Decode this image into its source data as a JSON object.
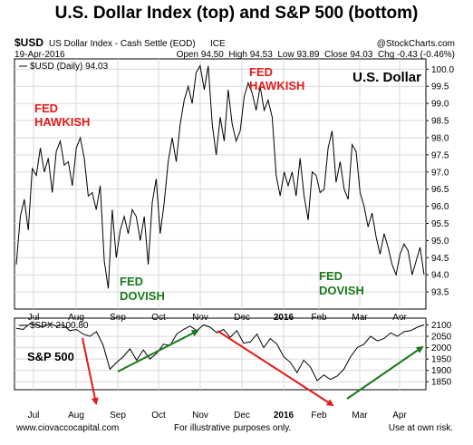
{
  "title": "U.S. Dollar Index (top) and S&P 500 (bottom)",
  "header": {
    "symbol": "$USD",
    "name": "US Dollar Index - Cash Settle (EOD)",
    "exchange": "ICE",
    "copyright": "@StockCharts.com",
    "date": "19-Apr-2016",
    "ohlc": "Open 94.50  High 94.53  Low 93.89  Close 94.03  Chg -0.43 (-0.46%)"
  },
  "chart_data": [
    {
      "type": "line",
      "title": "U.S. Dollar",
      "legend": "$USD (Daily) 94.03",
      "ylim": [
        93.0,
        100.3
      ],
      "yticks": [
        "93.5",
        "94.0",
        "94.5",
        "95.0",
        "95.5",
        "96.0",
        "96.5",
        "97.0",
        "97.5",
        "98.0",
        "98.5",
        "99.0",
        "99.5",
        "100.0"
      ],
      "xticks": [
        "Jul",
        "Aug",
        "Sep",
        "Oct",
        "Nov",
        "Dec",
        "2016",
        "Feb",
        "Mar",
        "Apr"
      ],
      "x": [
        0,
        3,
        6,
        9,
        12,
        15,
        18,
        21,
        24,
        27,
        30,
        33,
        36,
        39,
        42,
        45,
        48,
        51,
        54,
        57,
        60,
        63,
        66,
        69,
        72,
        75,
        78,
        81,
        84,
        87,
        90,
        93,
        96,
        99,
        102,
        105,
        108,
        111,
        114,
        117,
        120,
        123,
        126,
        129,
        132,
        135,
        138,
        141,
        144,
        147,
        150,
        153,
        156,
        159,
        162,
        165,
        168,
        171,
        174,
        177,
        180,
        183,
        186,
        189,
        192,
        195,
        198,
        201,
        204,
        207,
        210,
        213,
        216,
        219,
        222,
        225,
        228,
        231,
        234,
        237,
        240,
        243,
        246,
        249,
        252,
        255,
        258,
        261,
        264,
        267,
        270,
        273,
        276,
        279,
        282,
        285,
        288,
        291,
        294,
        297,
        300,
        303,
        306
      ],
      "values": [
        94.3,
        95.7,
        96.2,
        95.3,
        97.1,
        96.9,
        97.7,
        97.0,
        97.4,
        96.4,
        97.6,
        97.9,
        97.2,
        97.3,
        96.6,
        97.7,
        98.0,
        97.4,
        96.3,
        96.4,
        95.9,
        96.6,
        94.4,
        93.6,
        95.9,
        94.5,
        95.3,
        95.7,
        95.2,
        95.9,
        95.7,
        95.0,
        95.7,
        94.3,
        96.1,
        96.8,
        95.2,
        96.1,
        97.3,
        98.0,
        97.3,
        98.4,
        99.1,
        99.5,
        99.0,
        99.9,
        100.1,
        99.4,
        100.1,
        98.4,
        97.5,
        98.6,
        97.9,
        99.4,
        98.4,
        97.9,
        98.2,
        99.2,
        99.6,
        99.3,
        98.8,
        99.5,
        98.8,
        99.1,
        98.6,
        96.9,
        96.3,
        97.0,
        96.6,
        97.0,
        96.3,
        97.4,
        96.3,
        95.6,
        97.0,
        96.9,
        96.4,
        96.5,
        97.7,
        98.2,
        96.7,
        97.3,
        96.5,
        96.2,
        97.8,
        97.6,
        96.4,
        96.0,
        95.4,
        95.8,
        95.1,
        94.6,
        95.2,
        94.8,
        94.3,
        94.0,
        94.6,
        94.9,
        94.7,
        94.0,
        94.4,
        94.8,
        94.0
      ],
      "annotations": [
        {
          "text": "FED",
          "color": "#e31a1a"
        },
        {
          "text": "HAWKISH",
          "color": "#e31a1a"
        },
        {
          "text": "FED",
          "color": "#e31a1a"
        },
        {
          "text": "HAWKISH",
          "color": "#e31a1a"
        },
        {
          "text": "FED",
          "color": "#1a7a1a"
        },
        {
          "text": "DOVISH",
          "color": "#1a7a1a"
        },
        {
          "text": "FED",
          "color": "#1a7a1a"
        },
        {
          "text": "DOVISH",
          "color": "#1a7a1a"
        }
      ]
    },
    {
      "type": "line",
      "title": "S&P 500",
      "legend": "$SPX 2100.80",
      "ylim": [
        1815,
        2130
      ],
      "yticks": [
        "1850",
        "1900",
        "1950",
        "2000",
        "2050",
        "2100"
      ],
      "xticks": [
        "Jul",
        "Aug",
        "Sep",
        "Oct",
        "Nov",
        "Dec",
        "2016",
        "Feb",
        "Mar",
        "Apr"
      ],
      "x": [
        0,
        5,
        10,
        15,
        20,
        25,
        30,
        35,
        40,
        45,
        50,
        55,
        60,
        65,
        70,
        75,
        80,
        85,
        90,
        95,
        100,
        105,
        110,
        115,
        120,
        125,
        130,
        135,
        140,
        145,
        150,
        155,
        160,
        165,
        170,
        175,
        180,
        185,
        190,
        195,
        200,
        205,
        210,
        215,
        220,
        225,
        230,
        235,
        240,
        245,
        250,
        255,
        260,
        265,
        270,
        275,
        280,
        285,
        290,
        295,
        300,
        305
      ],
      "values": [
        2085,
        2080,
        2105,
        2100,
        2090,
        2105,
        2095,
        2100,
        2075,
        2080,
        2060,
        2050,
        2070,
        2010,
        1905,
        1935,
        1960,
        1995,
        1945,
        1990,
        1950,
        1975,
        2015,
        2010,
        2060,
        2080,
        2095,
        2075,
        2100,
        2090,
        2065,
        2080,
        2045,
        2075,
        2020,
        2025,
        2060,
        2000,
        2040,
        2015,
        1960,
        1935,
        1890,
        1945,
        1915,
        1855,
        1880,
        1860,
        1875,
        1905,
        1960,
        2000,
        2015,
        2050,
        2030,
        2040,
        2065,
        2050,
        2070,
        2075,
        2090,
        2100
      ],
      "annotations": [
        {
          "text": "S&P 500",
          "color": "#000000"
        }
      ]
    }
  ],
  "footer": {
    "left": "www.ciovaccocapital.com",
    "center": "For illustrative purposes only.",
    "right": "Use at own risk."
  },
  "colors": {
    "line": "#000000",
    "grid": "#d9d9d9",
    "bull": "#1a7a1a",
    "bear": "#e31a1a"
  }
}
